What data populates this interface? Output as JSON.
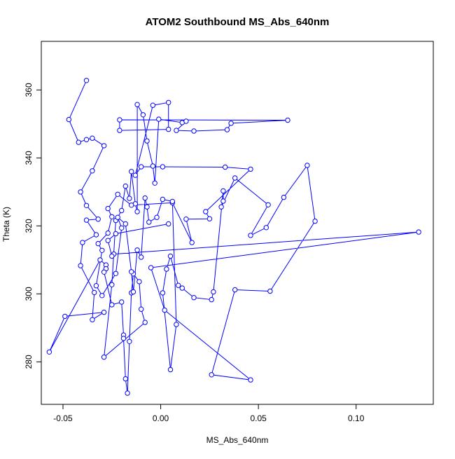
{
  "chart_data": {
    "type": "line",
    "title": "ATOM2 Southbound MS_Abs_640nm",
    "xlabel": "MS_Abs_640nm",
    "ylabel": "Theta (K)",
    "xlim": [
      -0.0611,
      0.1395
    ],
    "ylim": [
      267.5,
      374.3
    ],
    "xticks": [
      -0.05,
      0.0,
      0.05,
      0.1
    ],
    "xtick_labels": [
      "-0.05",
      "0.00",
      "0.05",
      "0.10"
    ],
    "yticks": [
      280,
      300,
      320,
      340,
      360
    ],
    "ytick_labels": [
      "280",
      "300",
      "320",
      "340",
      "360"
    ],
    "grid": false,
    "legend": "none",
    "colors": {
      "series": "#0000ff"
    },
    "series": [
      {
        "marker": "open-circle",
        "line": "connected-in-sequence",
        "points": [
          [
            -0.038,
            362.8
          ],
          [
            -0.047,
            351.3
          ],
          [
            -0.042,
            344.6
          ],
          [
            -0.038,
            345.4
          ],
          [
            -0.035,
            345.8
          ],
          [
            -0.029,
            343.6
          ],
          [
            -0.035,
            336.2
          ],
          [
            -0.041,
            330.0
          ],
          [
            -0.038,
            326.0
          ],
          [
            -0.032,
            322.0
          ],
          [
            -0.038,
            321.7
          ],
          [
            -0.033,
            317.4
          ],
          [
            -0.04,
            315.1
          ],
          [
            -0.041,
            308.3
          ],
          [
            -0.034,
            300.4
          ],
          [
            -0.035,
            292.4
          ],
          [
            -0.029,
            294.6
          ],
          [
            -0.049,
            293.4
          ],
          [
            -0.057,
            282.9
          ],
          [
            -0.031,
            310.0
          ],
          [
            -0.028,
            308.5
          ],
          [
            -0.028,
            307.4
          ],
          [
            -0.029,
            306.4
          ],
          [
            -0.025,
            296.8
          ],
          [
            -0.02,
            297.6
          ],
          [
            -0.019,
            287.9
          ],
          [
            -0.019,
            286.9
          ],
          [
            -0.018,
            275.0
          ],
          [
            -0.017,
            270.8
          ],
          [
            -0.016,
            286.0
          ],
          [
            -0.015,
            300.3
          ],
          [
            -0.014,
            305.9
          ],
          [
            -0.011,
            303.6
          ],
          [
            -0.01,
            295.5
          ],
          [
            -0.008,
            291.6
          ],
          [
            -0.029,
            281.4
          ],
          [
            -0.025,
            302.7
          ],
          [
            -0.023,
            321.6
          ],
          [
            -0.02,
            324.5
          ],
          [
            -0.018,
            331.7
          ],
          [
            -0.016,
            328.1
          ],
          [
            -0.015,
            336.0
          ],
          [
            -0.013,
            326.5
          ],
          [
            -0.012,
            324.2
          ],
          [
            -0.012,
            355.7
          ],
          [
            -0.009,
            352.7
          ],
          [
            -0.007,
            345.0
          ],
          [
            -0.004,
            337.6
          ],
          [
            -0.003,
            332.6
          ],
          [
            -0.001,
            351.4
          ],
          [
            0.011,
            350.4
          ],
          [
            0.013,
            350.8
          ],
          [
            0.008,
            348.1
          ],
          [
            0.017,
            347.9
          ],
          [
            0.034,
            348.3
          ],
          [
            0.036,
            350.2
          ],
          [
            0.065,
            351.1
          ],
          [
            -0.021,
            351.2
          ],
          [
            -0.021,
            348.1
          ],
          [
            0.004,
            348.4
          ],
          [
            0.004,
            356.3
          ],
          [
            -0.004,
            355.5
          ],
          [
            -0.013,
            334.9
          ],
          [
            -0.01,
            337.4
          ],
          [
            0.001,
            337.4
          ],
          [
            0.033,
            337.3
          ],
          [
            0.046,
            336.7
          ],
          [
            0.023,
            324.2
          ],
          [
            0.025,
            322.1
          ],
          [
            0.013,
            322.0
          ],
          [
            0.016,
            315.1
          ],
          [
            0.006,
            326.8
          ],
          [
            -0.015,
            326.1
          ],
          [
            -0.022,
            329.3
          ],
          [
            -0.027,
            325.1
          ],
          [
            -0.025,
            322.7
          ],
          [
            -0.027,
            317.9
          ],
          [
            -0.032,
            314.8
          ],
          [
            -0.03,
            312.8
          ],
          [
            -0.033,
            302.4
          ],
          [
            -0.03,
            299.5
          ],
          [
            -0.023,
            306.0
          ],
          [
            -0.02,
            319.4
          ],
          [
            -0.022,
            322.5
          ],
          [
            -0.018,
            320.6
          ],
          [
            -0.015,
            306.5
          ],
          [
            -0.014,
            300.6
          ],
          [
            -0.012,
            312.9
          ],
          [
            -0.01,
            310.8
          ],
          [
            -0.008,
            328.2
          ],
          [
            -0.007,
            325.6
          ],
          [
            -0.006,
            321.1
          ],
          [
            -0.002,
            322.5
          ],
          [
            0.001,
            327.8
          ],
          [
            0.006,
            327.2
          ],
          [
            0.008,
            291.0
          ],
          [
            0.005,
            277.7
          ],
          [
            0.001,
            300.3
          ],
          [
            0.003,
            307.3
          ],
          [
            0.005,
            311.1
          ],
          [
            0.009,
            302.5
          ],
          [
            0.011,
            301.7
          ],
          [
            0.017,
            298.9
          ],
          [
            0.026,
            298.3
          ],
          [
            0.027,
            300.6
          ],
          [
            0.032,
            330.3
          ],
          [
            0.032,
            327.3
          ],
          [
            0.031,
            325.6
          ],
          [
            0.038,
            334.1
          ],
          [
            0.055,
            326.2
          ],
          [
            0.046,
            317.2
          ],
          [
            0.054,
            319.5
          ],
          [
            0.063,
            328.4
          ],
          [
            0.075,
            337.8
          ],
          [
            0.079,
            321.4
          ],
          [
            0.056,
            300.8
          ],
          [
            0.038,
            301.2
          ],
          [
            0.026,
            276.2
          ],
          [
            0.046,
            274.7
          ],
          [
            0.002,
            295.2
          ],
          [
            -0.005,
            307.7
          ],
          [
            0.132,
            318.2
          ],
          [
            -0.024,
            311.7
          ],
          [
            -0.025,
            311.1
          ],
          [
            -0.027,
            315.7
          ],
          [
            -0.023,
            317.7
          ],
          [
            0.004,
            320.6
          ]
        ]
      }
    ]
  }
}
